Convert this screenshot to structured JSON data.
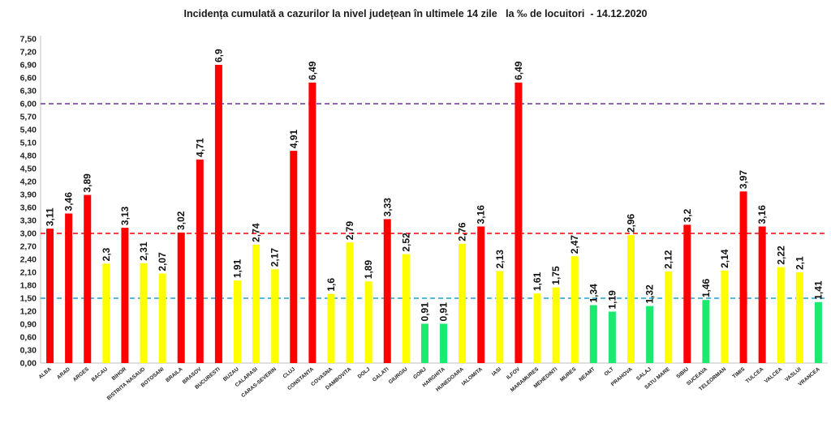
{
  "chart_data": {
    "type": "bar",
    "title": "Incidența cumulată a cazurilor la nivel județean în ultimele 14 zile   la ‰ de locuitori  - 14.12.2020",
    "xlabel": "",
    "ylabel": "",
    "ylim": [
      0,
      7.5
    ],
    "ytick_step": 0.3,
    "yticks": [
      "0,00",
      "0,30",
      "0,60",
      "0,90",
      "1,20",
      "1,50",
      "1,80",
      "2,10",
      "2,40",
      "2,70",
      "3,00",
      "3,30",
      "3,60",
      "3,90",
      "4,20",
      "4,50",
      "4,80",
      "5,10",
      "5,40",
      "5,70",
      "6,00",
      "6,30",
      "6,60",
      "6,90",
      "7,20",
      "7,50"
    ],
    "grid": false,
    "legend": "none",
    "categories": [
      "ALBA",
      "ARAD",
      "ARGES",
      "BACAU",
      "BIHOR",
      "BISTRITA NASAUD",
      "BOTOSANI",
      "BRAILA",
      "BRASOV",
      "BUCURESTI",
      "BUZAU",
      "CALARASI",
      "CARAS-SEVERIN",
      "CLUJ",
      "CONSTANTA",
      "COVASNA",
      "DAMBOVITA",
      "DOLJ",
      "GALATI",
      "GIURGIU",
      "GORJ",
      "HARGHITA",
      "HUNEDOARA",
      "IALOMITA",
      "IASI",
      "ILFOV",
      "MARAMURES",
      "MEHEDINTI",
      "MURES",
      "NEAMT",
      "OLT",
      "PRAHOVA",
      "SALAJ",
      "SATU MARE",
      "SIBIU",
      "SUCEAVA",
      "TELEORMAN",
      "TIMIS",
      "TULCEA",
      "VALCEA",
      "VASLUI",
      "VRANCEA"
    ],
    "values": [
      3.11,
      3.46,
      3.89,
      2.3,
      3.13,
      2.31,
      2.07,
      3.02,
      4.71,
      6.9,
      1.91,
      2.74,
      2.17,
      4.91,
      6.49,
      1.6,
      2.79,
      1.89,
      3.33,
      2.52,
      0.91,
      0.91,
      2.76,
      3.16,
      2.13,
      6.49,
      1.61,
      1.75,
      2.47,
      1.34,
      1.19,
      2.96,
      1.32,
      2.12,
      3.2,
      1.46,
      2.14,
      3.97,
      3.16,
      2.22,
      2.1,
      1.41
    ],
    "value_labels": [
      "3,11",
      "3,46",
      "3,89",
      "2,3",
      "3,13",
      "2,31",
      "2,07",
      "3,02",
      "4,71",
      "6,9",
      "1,91",
      "2,74",
      "2,17",
      "4,91",
      "6,49",
      "1,6",
      "2,79",
      "1,89",
      "3,33",
      "2,52",
      "0,91",
      "0,91",
      "2,76",
      "3,16",
      "2,13",
      "6,49",
      "1,61",
      "1,75",
      "2,47",
      "1,34",
      "1,19",
      "2,96",
      "1,32",
      "2,12",
      "3,2",
      "1,46",
      "2,14",
      "3,97",
      "3,16",
      "2,22",
      "2,1",
      "1,41"
    ],
    "color_thresholds": {
      "green_below": 1.5,
      "yellow_below": 3.0
    },
    "colors": {
      "red": "#ff0000",
      "yellow": "#ffff00",
      "green": "#1aeb6e"
    },
    "reference_lines": [
      {
        "value": 6.0,
        "color": "#7030a0"
      },
      {
        "value": 3.0,
        "color": "#ff0000"
      },
      {
        "value": 1.5,
        "color": "#1e9fd6"
      }
    ]
  }
}
